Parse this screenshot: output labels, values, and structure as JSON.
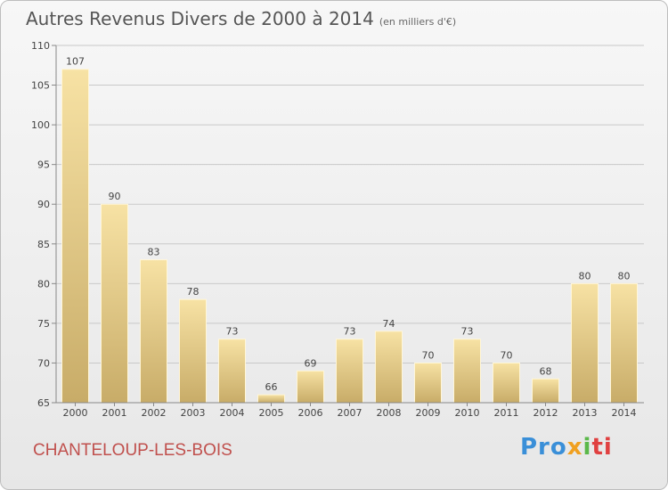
{
  "title": {
    "main": "Autres Revenus Divers de 2000 à 2014",
    "unit": "(en milliers d'€)"
  },
  "city": "CHANTELOUP-LES-BOIS",
  "logo": {
    "p1": "Pro",
    "p2": "x",
    "p3": "i",
    "p4": "ti"
  },
  "colors": {
    "bar_top": "#f7e2a4",
    "bar_bottom": "#c8ac68",
    "grid": "#c9c9c9",
    "city": "#c0504d"
  },
  "chart_data": {
    "type": "bar",
    "categories": [
      "2000",
      "2001",
      "2002",
      "2003",
      "2004",
      "2005",
      "2006",
      "2007",
      "2008",
      "2009",
      "2010",
      "2011",
      "2012",
      "2013",
      "2014"
    ],
    "values": [
      107,
      90,
      83,
      78,
      73,
      66,
      69,
      73,
      74,
      70,
      73,
      70,
      68,
      80,
      80
    ],
    "ylim": [
      65,
      110
    ],
    "yticks": [
      65,
      70,
      75,
      80,
      85,
      90,
      95,
      100,
      105,
      110
    ],
    "grid": true,
    "data_labels": true
  }
}
